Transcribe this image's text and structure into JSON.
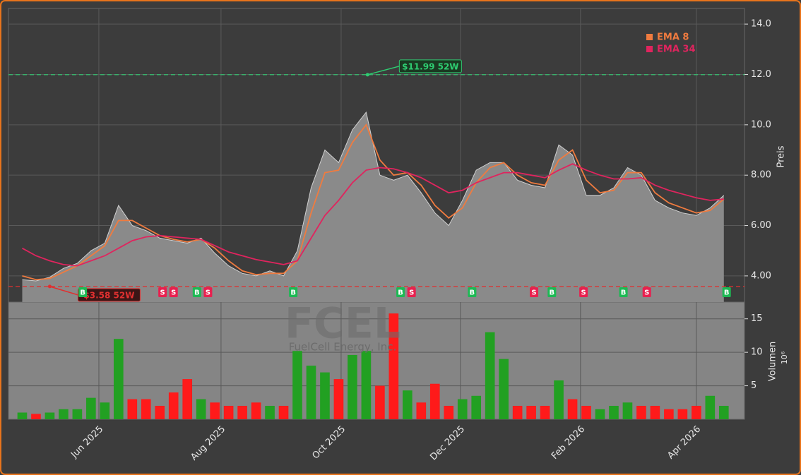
{
  "chart_data": [
    {
      "type": "area",
      "watermark": "FCEL",
      "watermark_subtitle": "FuelCell Energy, Inc.",
      "y_label": "Preis",
      "values": [
        3.85,
        3.8,
        3.95,
        4.3,
        4.5,
        5.0,
        5.3,
        6.8,
        6.0,
        5.8,
        5.5,
        5.4,
        5.3,
        5.5,
        4.9,
        4.4,
        4.1,
        4.0,
        4.2,
        4.0,
        5.0,
        7.5,
        9.0,
        8.5,
        9.8,
        10.5,
        8.0,
        7.8,
        8.0,
        7.3,
        6.5,
        6.0,
        7.0,
        8.2,
        8.5,
        8.5,
        7.8,
        7.6,
        7.5,
        9.2,
        8.8,
        7.2,
        7.2,
        7.5,
        8.3,
        8.0,
        7.0,
        6.7,
        6.5,
        6.4,
        6.7,
        7.2
      ],
      "color": "#8a8a8a",
      "series": [
        {
          "name": "EMA 8",
          "color": "#f07b3f",
          "values": [
            4.0,
            3.85,
            3.9,
            4.15,
            4.4,
            4.8,
            5.2,
            6.2,
            6.2,
            5.9,
            5.6,
            5.45,
            5.35,
            5.45,
            5.1,
            4.6,
            4.2,
            4.05,
            4.1,
            4.1,
            4.6,
            6.5,
            8.1,
            8.2,
            9.3,
            10.0,
            8.6,
            8.0,
            8.1,
            7.6,
            6.8,
            6.3,
            6.7,
            7.7,
            8.3,
            8.5,
            8.0,
            7.7,
            7.6,
            8.6,
            9.0,
            7.8,
            7.3,
            7.4,
            8.1,
            8.1,
            7.3,
            6.9,
            6.7,
            6.5,
            6.6,
            7.05
          ]
        },
        {
          "name": "EMA 34",
          "color": "#e0245e",
          "values": [
            5.1,
            4.8,
            4.6,
            4.45,
            4.4,
            4.6,
            4.8,
            5.1,
            5.4,
            5.55,
            5.6,
            5.55,
            5.5,
            5.45,
            5.2,
            4.95,
            4.8,
            4.65,
            4.55,
            4.45,
            4.6,
            5.5,
            6.4,
            7.0,
            7.7,
            8.2,
            8.3,
            8.25,
            8.1,
            7.9,
            7.6,
            7.3,
            7.4,
            7.7,
            7.9,
            8.1,
            8.1,
            8.0,
            7.9,
            8.2,
            8.45,
            8.2,
            8.0,
            7.85,
            7.85,
            7.9,
            7.6,
            7.4,
            7.25,
            7.1,
            7.0,
            7.05
          ]
        }
      ],
      "annotations": [
        {
          "x": 25.1,
          "value": 11.99,
          "label": "$11.99 52W",
          "color": "#2ecc71"
        },
        {
          "x": 2.0,
          "value": 3.58,
          "label": "$3.58 52W",
          "color": "#e03030"
        }
      ],
      "signals": [
        {
          "x": 4.4,
          "label": "B",
          "color": "#1db954"
        },
        {
          "x": 10.2,
          "label": "S",
          "color": "#e8204f"
        },
        {
          "x": 11.0,
          "label": "S",
          "color": "#e8204f"
        },
        {
          "x": 12.7,
          "label": "B",
          "color": "#1db954"
        },
        {
          "x": 13.5,
          "label": "S",
          "color": "#e8204f"
        },
        {
          "x": 19.7,
          "label": "B",
          "color": "#1db954"
        },
        {
          "x": 27.5,
          "label": "B",
          "color": "#1db954"
        },
        {
          "x": 28.3,
          "label": "S",
          "color": "#e8204f"
        },
        {
          "x": 32.7,
          "label": "B",
          "color": "#1db954"
        },
        {
          "x": 37.2,
          "label": "S",
          "color": "#e8204f"
        },
        {
          "x": 38.5,
          "label": "B",
          "color": "#1db954"
        },
        {
          "x": 40.8,
          "label": "S",
          "color": "#e8204f"
        },
        {
          "x": 43.7,
          "label": "B",
          "color": "#1db954"
        },
        {
          "x": 45.4,
          "label": "S",
          "color": "#e8204f"
        },
        {
          "x": 51.2,
          "label": "B",
          "color": "#1db954"
        }
      ],
      "xlim": [
        -1,
        52.5
      ],
      "ylim": [
        2.96,
        14.62
      ],
      "yticks": [
        {
          "value": 4,
          "label": "4.00"
        },
        {
          "value": 6,
          "label": "6.00"
        },
        {
          "value": 8,
          "label": "8.00"
        },
        {
          "value": 10,
          "label": "10.0"
        },
        {
          "value": 12,
          "label": "12.0"
        },
        {
          "value": 14,
          "label": "14.0"
        }
      ],
      "grid": true,
      "legend": "top-right"
    },
    {
      "type": "bar",
      "y_label": "Volumen",
      "y_unit": "10⁶",
      "values": [
        1.0,
        0.8,
        1.0,
        1.5,
        1.5,
        3.2,
        2.5,
        12.0,
        3.0,
        3.0,
        2.0,
        4.0,
        6.0,
        3.0,
        2.5,
        2.0,
        2.0,
        2.5,
        2.0,
        2.0,
        10.2,
        8.0,
        7.0,
        6.0,
        9.6,
        10.2,
        5.0,
        15.8,
        4.3,
        2.5,
        5.3,
        2.0,
        3.0,
        3.5,
        13.0,
        9.0,
        2.0,
        2.0,
        2.0,
        5.8,
        3.0,
        2.0,
        1.5,
        2.0,
        2.5,
        2.0,
        2.0,
        1.5,
        1.5,
        2.0,
        3.5,
        2.0
      ],
      "up_color": "#22a022",
      "down_color": "#ff1a1a",
      "xlim": [
        -1,
        52.5
      ],
      "xticks": [
        {
          "value": 5.57,
          "label": "Jun 2025"
        },
        {
          "value": 14.45,
          "label": "Aug 2025"
        },
        {
          "value": 23.18,
          "label": "Oct 2025"
        },
        {
          "value": 31.85,
          "label": "Dec 2025"
        },
        {
          "value": 40.58,
          "label": "Feb 2026"
        },
        {
          "value": 49.0,
          "label": "Apr 2026"
        }
      ],
      "ylim": [
        0,
        17.5
      ],
      "yticks": [
        5,
        10,
        15
      ],
      "grid": true
    }
  ]
}
